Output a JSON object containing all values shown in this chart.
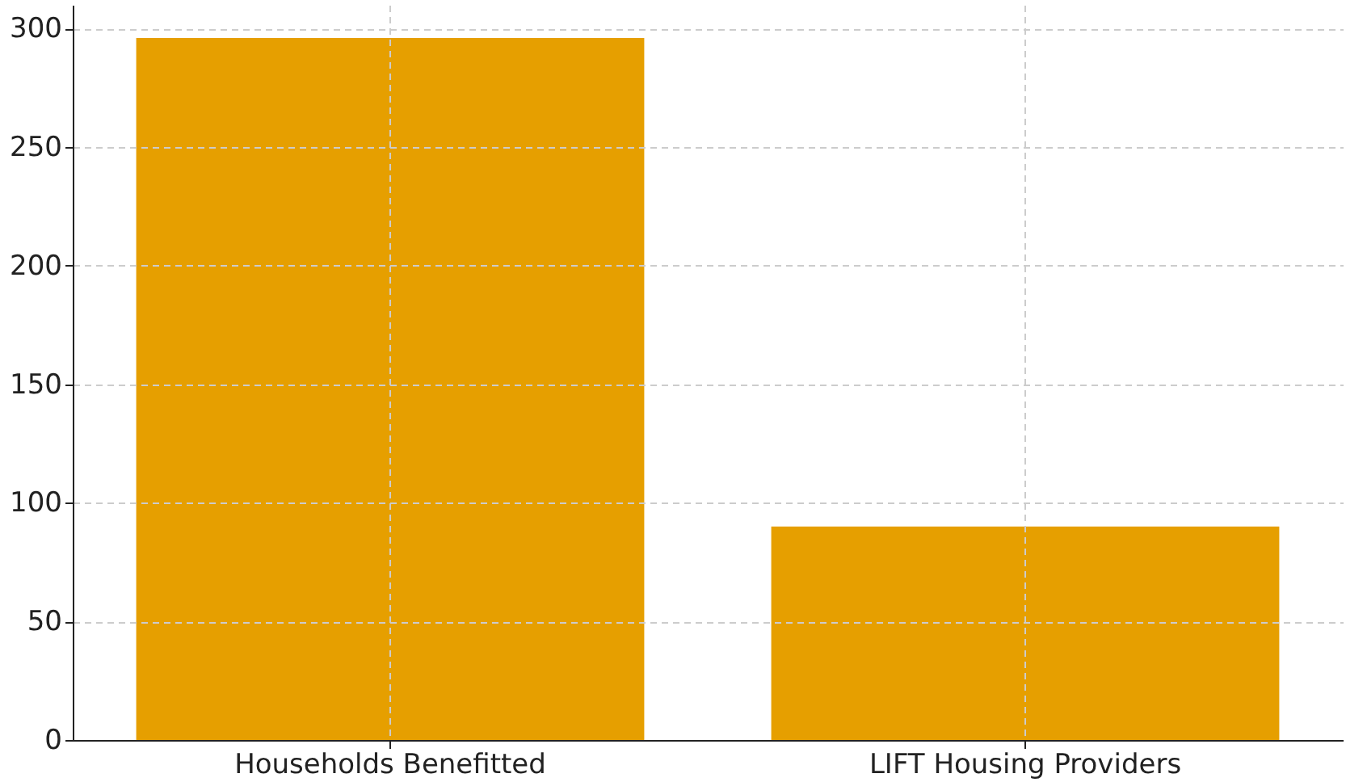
{
  "chart_data": {
    "type": "bar",
    "categories": [
      "Households Benefitted",
      "LIFT Housing Providers"
    ],
    "values": [
      296,
      90
    ],
    "color": "#e69f00",
    "ylim": [
      0,
      310
    ],
    "yticks": [
      0,
      50,
      100,
      150,
      200,
      250,
      300
    ],
    "grid": true
  }
}
